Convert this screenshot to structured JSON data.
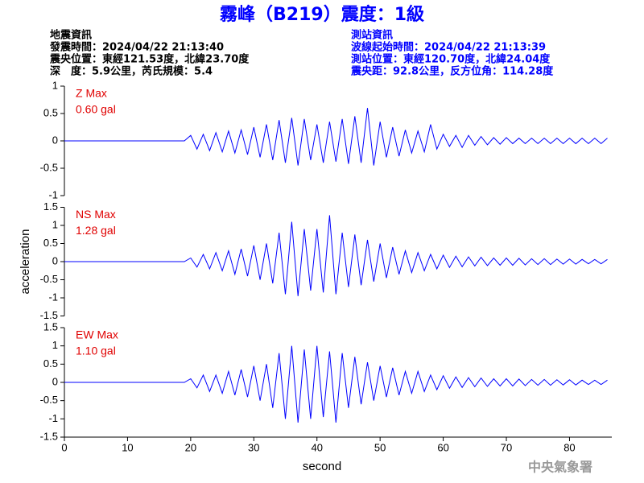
{
  "header": {
    "title": "霧峰（B219）震度：1級",
    "left": [
      "地震資訊",
      "發震時間：2024/04/22 21:13:40",
      "震央位置：東經121.53度，北緯23.70度",
      "深　度：5.9公里，芮氏規模：5.4"
    ],
    "right": [
      "測站資訊",
      "波線起始時間：2024/04/22 21:13:39",
      "測站位置：東經120.70度，北緯24.04度",
      "震央距：92.8公里，反方位角：114.28度"
    ]
  },
  "watermark": "中央氣象署",
  "chart_data": [
    {
      "type": "line",
      "annotation": [
        "Z Max",
        "0.60 gal"
      ],
      "color": "#0000ff",
      "xlim": [
        0,
        86.7
      ],
      "ylim": [
        -1,
        1
      ],
      "yticks": [
        1,
        0.5,
        0,
        -0.5,
        -1
      ],
      "x": [
        0,
        1,
        2,
        3,
        4,
        5,
        6,
        7,
        8,
        9,
        10,
        11,
        12,
        13,
        14,
        15,
        16,
        17,
        18,
        19,
        20,
        21,
        22,
        23,
        24,
        25,
        26,
        27,
        28,
        29,
        30,
        31,
        32,
        33,
        34,
        35,
        36,
        37,
        38,
        39,
        40,
        41,
        42,
        43,
        44,
        45,
        46,
        47,
        48,
        49,
        50,
        51,
        52,
        53,
        54,
        55,
        56,
        57,
        58,
        59,
        60,
        61,
        62,
        63,
        64,
        65,
        66,
        67,
        68,
        69,
        70,
        71,
        72,
        73,
        74,
        75,
        76,
        77,
        78,
        79,
        80,
        81,
        82,
        83,
        84,
        85,
        86
      ],
      "values": [
        0,
        0,
        0,
        0,
        0,
        0,
        0,
        0,
        0,
        0,
        0,
        0,
        0,
        0,
        0,
        0,
        0,
        0,
        0,
        0,
        0.1,
        -0.15,
        0.12,
        -0.18,
        0.15,
        -0.2,
        0.18,
        -0.22,
        0.2,
        -0.25,
        0.25,
        -0.3,
        0.3,
        -0.35,
        0.38,
        -0.4,
        0.42,
        -0.45,
        0.4,
        -0.35,
        0.3,
        -0.4,
        0.35,
        -0.38,
        0.4,
        -0.42,
        0.45,
        -0.4,
        0.6,
        -0.45,
        0.35,
        -0.3,
        0.25,
        -0.28,
        0.2,
        -0.22,
        0.18,
        -0.2,
        0.3,
        -0.15,
        0.12,
        -0.1,
        0.1,
        -0.12,
        0.1,
        -0.08,
        0.08,
        -0.07,
        0.06,
        -0.06,
        0.06,
        -0.05,
        0.05,
        -0.05,
        0.05,
        -0.05,
        0.05,
        -0.05,
        0.05,
        -0.05,
        0.05,
        -0.05,
        0.05,
        -0.05,
        0.05,
        -0.05,
        0.05
      ]
    },
    {
      "type": "line",
      "annotation": [
        "NS Max",
        "1.28 gal"
      ],
      "color": "#0000ff",
      "ylabel": "acceleration",
      "xlim": [
        0,
        86.7
      ],
      "ylim": [
        -1.5,
        1.5
      ],
      "yticks": [
        1.5,
        1,
        0.5,
        0,
        -0.5,
        -1,
        -1.5
      ],
      "x": [
        0,
        1,
        2,
        3,
        4,
        5,
        6,
        7,
        8,
        9,
        10,
        11,
        12,
        13,
        14,
        15,
        16,
        17,
        18,
        19,
        20,
        21,
        22,
        23,
        24,
        25,
        26,
        27,
        28,
        29,
        30,
        31,
        32,
        33,
        34,
        35,
        36,
        37,
        38,
        39,
        40,
        41,
        42,
        43,
        44,
        45,
        46,
        47,
        48,
        49,
        50,
        51,
        52,
        53,
        54,
        55,
        56,
        57,
        58,
        59,
        60,
        61,
        62,
        63,
        64,
        65,
        66,
        67,
        68,
        69,
        70,
        71,
        72,
        73,
        74,
        75,
        76,
        77,
        78,
        79,
        80,
        81,
        82,
        83,
        84,
        85,
        86
      ],
      "values": [
        0,
        0,
        0,
        0,
        0,
        0,
        0,
        0,
        0,
        0,
        0,
        0,
        0,
        0,
        0,
        0,
        0,
        0,
        0,
        0,
        0.1,
        -0.15,
        0.2,
        -0.2,
        0.25,
        -0.25,
        0.3,
        -0.35,
        0.35,
        -0.4,
        0.45,
        -0.5,
        0.5,
        -0.6,
        0.8,
        -0.9,
        1.1,
        -0.95,
        0.9,
        -0.8,
        0.9,
        -0.85,
        1.28,
        -0.9,
        0.8,
        -0.7,
        0.75,
        -0.65,
        0.6,
        -0.55,
        0.5,
        -0.45,
        0.4,
        -0.35,
        0.3,
        -0.3,
        0.25,
        -0.25,
        0.2,
        -0.2,
        0.18,
        -0.16,
        0.15,
        -0.14,
        0.13,
        -0.12,
        0.12,
        -0.11,
        0.1,
        -0.1,
        0.1,
        -0.1,
        0.09,
        -0.09,
        0.08,
        -0.08,
        0.08,
        -0.08,
        0.07,
        -0.07,
        0.07,
        -0.07,
        0.06,
        -0.06,
        0.06,
        -0.06,
        0.06
      ]
    },
    {
      "type": "line",
      "annotation": [
        "EW Max",
        "1.10 gal"
      ],
      "color": "#0000ff",
      "xlabel": "second",
      "xlim": [
        0,
        86.7
      ],
      "xticks": [
        0,
        10,
        20,
        30,
        40,
        50,
        60,
        70,
        80
      ],
      "ylim": [
        -1.5,
        1.5
      ],
      "yticks": [
        1.5,
        1,
        0.5,
        0,
        -0.5,
        -1,
        -1.5
      ],
      "x": [
        0,
        1,
        2,
        3,
        4,
        5,
        6,
        7,
        8,
        9,
        10,
        11,
        12,
        13,
        14,
        15,
        16,
        17,
        18,
        19,
        20,
        21,
        22,
        23,
        24,
        25,
        26,
        27,
        28,
        29,
        30,
        31,
        32,
        33,
        34,
        35,
        36,
        37,
        38,
        39,
        40,
        41,
        42,
        43,
        44,
        45,
        46,
        47,
        48,
        49,
        50,
        51,
        52,
        53,
        54,
        55,
        56,
        57,
        58,
        59,
        60,
        61,
        62,
        63,
        64,
        65,
        66,
        67,
        68,
        69,
        70,
        71,
        72,
        73,
        74,
        75,
        76,
        77,
        78,
        79,
        80,
        81,
        82,
        83,
        84,
        85,
        86
      ],
      "values": [
        0,
        0,
        0,
        0,
        0,
        0,
        0,
        0,
        0,
        0,
        0,
        0,
        0,
        0,
        0,
        0,
        0,
        0,
        0,
        0,
        0.1,
        -0.15,
        0.2,
        -0.25,
        0.2,
        -0.3,
        0.3,
        -0.35,
        0.35,
        -0.4,
        0.45,
        -0.5,
        0.5,
        -0.7,
        0.8,
        -1.0,
        1.0,
        -1.1,
        0.9,
        -1.0,
        1.0,
        -0.95,
        0.85,
        -1.1,
        0.8,
        -0.7,
        0.7,
        -0.6,
        0.55,
        -0.5,
        0.45,
        -0.4,
        0.4,
        -0.35,
        0.3,
        -0.3,
        0.3,
        -0.25,
        0.2,
        -0.2,
        0.18,
        -0.16,
        0.15,
        -0.14,
        0.13,
        -0.12,
        0.12,
        -0.11,
        0.1,
        -0.1,
        0.1,
        -0.1,
        0.09,
        -0.09,
        0.08,
        -0.08,
        0.08,
        -0.08,
        0.07,
        -0.07,
        0.07,
        -0.07,
        0.06,
        -0.06,
        0.06,
        -0.06,
        0.06
      ]
    }
  ]
}
